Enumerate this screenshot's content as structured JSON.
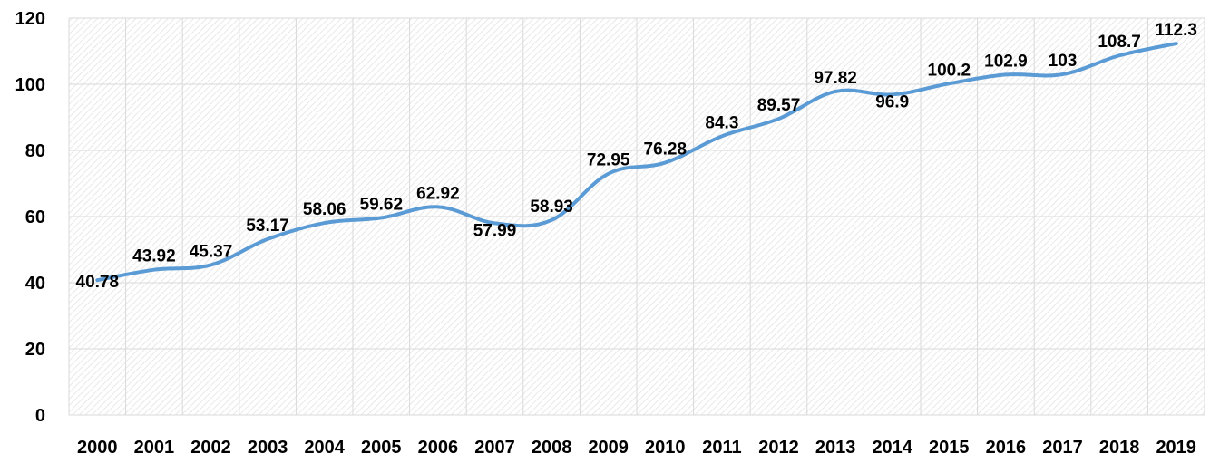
{
  "chart_data": {
    "type": "line",
    "title": "",
    "xlabel": "",
    "ylabel": "",
    "categories": [
      "2000",
      "2001",
      "2002",
      "2003",
      "2004",
      "2005",
      "2006",
      "2007",
      "2008",
      "2009",
      "2010",
      "2011",
      "2012",
      "2013",
      "2014",
      "2015",
      "2016",
      "2017",
      "2018",
      "2019"
    ],
    "series": [
      {
        "values": [
          40.78,
          43.92,
          45.37,
          53.17,
          58.06,
          59.62,
          62.92,
          57.99,
          58.93,
          72.95,
          76.28,
          84.3,
          89.57,
          97.82,
          96.9,
          100.2,
          102.9,
          103,
          108.7,
          112.3
        ],
        "labels": [
          "40.78",
          "43.92",
          "45.37",
          "53.17",
          "58.06",
          "59.62",
          "62.92",
          "57.99",
          "58.93",
          "72.95",
          "76.28",
          "84.3",
          "89.57",
          "97.82",
          "96.9",
          "100.2",
          "102.9",
          "103",
          "108.7",
          "112.3"
        ],
        "color": "#5b9bd5"
      }
    ],
    "ylim": [
      0,
      120
    ],
    "yticks": [
      0,
      20,
      40,
      60,
      80,
      100,
      120
    ],
    "grid": true,
    "legend": "none",
    "plot_background": "hatched"
  }
}
